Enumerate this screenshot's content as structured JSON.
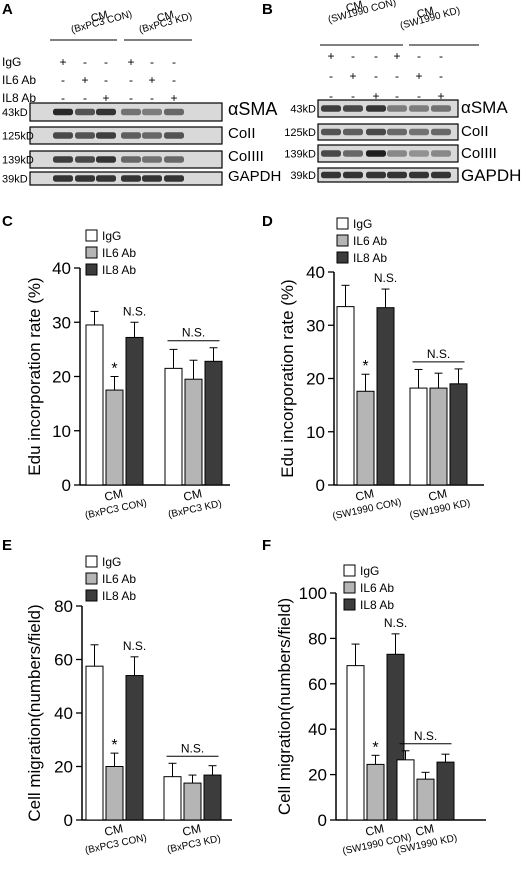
{
  "panels": [
    {
      "letter": "A",
      "cm_labels": [
        [
          "CM",
          "(BxPC3 CON)"
        ],
        [
          "CM",
          "(BxPC3 KD)"
        ]
      ],
      "treatments": [
        {
          "label": "IgG",
          "signs": [
            "+",
            "-",
            "-",
            "+",
            "-",
            "-"
          ]
        },
        {
          "label": "IL6 Ab",
          "signs": [
            "-",
            "+",
            "-",
            "-",
            "+",
            "-"
          ]
        },
        {
          "label": "IL8 Ab",
          "signs": [
            "-",
            "-",
            "+",
            "-",
            "-",
            "+"
          ]
        }
      ],
      "blots": [
        {
          "kd": "43kD",
          "protein": "αSMA",
          "intensity": [
            0.9,
            0.7,
            0.85,
            0.55,
            0.5,
            0.6
          ]
        },
        {
          "kd": "125kD",
          "protein": "CoII",
          "intensity": [
            0.75,
            0.7,
            0.8,
            0.65,
            0.6,
            0.7
          ]
        },
        {
          "kd": "139kD",
          "protein": "CoIIII",
          "intensity": [
            0.8,
            0.75,
            0.85,
            0.6,
            0.55,
            0.6
          ]
        },
        {
          "kd": "39kD",
          "protein": "GAPDH",
          "intensity": [
            0.85,
            0.85,
            0.85,
            0.85,
            0.85,
            0.85
          ]
        }
      ]
    },
    {
      "letter": "B",
      "cm_labels": [
        [
          "CM",
          "(SW1990 CON)"
        ],
        [
          "CM",
          "(SW1990 KD)"
        ]
      ],
      "treatments": [
        {
          "label": "",
          "signs": [
            "+",
            "-",
            "-",
            "+",
            "-",
            "-"
          ]
        },
        {
          "label": "",
          "signs": [
            "-",
            "+",
            "-",
            "-",
            "+",
            "-"
          ]
        },
        {
          "label": "",
          "signs": [
            "-",
            "-",
            "+",
            "-",
            "-",
            "+"
          ]
        }
      ],
      "blots": [
        {
          "kd": "43kD",
          "protein": "αSMA",
          "intensity": [
            0.8,
            0.75,
            0.85,
            0.5,
            0.5,
            0.55
          ]
        },
        {
          "kd": "125kD",
          "protein": "CoII",
          "intensity": [
            0.7,
            0.65,
            0.75,
            0.6,
            0.55,
            0.6
          ]
        },
        {
          "kd": "139kD",
          "protein": "CoIIII",
          "intensity": [
            0.75,
            0.6,
            0.95,
            0.45,
            0.4,
            0.45
          ]
        },
        {
          "kd": "39kD",
          "protein": "GAPDH",
          "intensity": [
            0.85,
            0.85,
            0.85,
            0.85,
            0.85,
            0.85
          ]
        }
      ]
    }
  ],
  "chart_data": [
    {
      "letter": "C",
      "type": "bar",
      "ylabel": "Edu incorporation rate (%)",
      "ylim": [
        0,
        40
      ],
      "yticks": [
        0,
        10,
        20,
        30,
        40
      ],
      "groups": [
        [
          "CM",
          "(BxPC3 CON)"
        ],
        [
          "CM",
          "(BxPC3 KD)"
        ]
      ],
      "series": [
        {
          "name": "IgG",
          "color": "#ffffff",
          "values": [
            29.5,
            21.5
          ],
          "errors": [
            2.5,
            3.5
          ]
        },
        {
          "name": "IL6 Ab",
          "color": "#b5b5b5",
          "values": [
            17.5,
            19.5
          ],
          "errors": [
            2.5,
            3.5
          ]
        },
        {
          "name": "IL8 Ab",
          "color": "#3c3c3c",
          "values": [
            27.2,
            22.8
          ],
          "errors": [
            2.8,
            2.5
          ]
        }
      ],
      "annotations": {
        "star": "*",
        "ns_top": "N.S.",
        "ns_group": "N.S."
      }
    },
    {
      "letter": "D",
      "type": "bar",
      "ylabel": "Edu incorporation rate (%)",
      "ylim": [
        0,
        40
      ],
      "yticks": [
        0,
        10,
        20,
        30,
        40
      ],
      "groups": [
        [
          "CM",
          "(SW1990 CON)"
        ],
        [
          "CM",
          "(SW1990 KD)"
        ]
      ],
      "series": [
        {
          "name": "IgG",
          "color": "#ffffff",
          "values": [
            33.5,
            18.2
          ],
          "errors": [
            4.0,
            3.5
          ]
        },
        {
          "name": "IL6 Ab",
          "color": "#b5b5b5",
          "values": [
            17.6,
            18.2
          ],
          "errors": [
            3.2,
            2.8
          ]
        },
        {
          "name": "IL8 Ab",
          "color": "#3c3c3c",
          "values": [
            33.3,
            19.0
          ],
          "errors": [
            3.5,
            2.8
          ]
        }
      ],
      "annotations": {
        "star": "*",
        "ns_top": "N.S.",
        "ns_group": "N.S."
      }
    },
    {
      "letter": "E",
      "type": "bar",
      "ylabel": "Cell migration(numbers/field)",
      "ylim": [
        0,
        80
      ],
      "yticks": [
        0,
        20,
        40,
        60,
        80
      ],
      "groups": [
        [
          "CM",
          "(BxPC3 CON)"
        ],
        [
          "CM",
          "(BxPC3 KD)"
        ]
      ],
      "series": [
        {
          "name": "IgG",
          "color": "#ffffff",
          "values": [
            57.5,
            16.2
          ],
          "errors": [
            8.0,
            5.0
          ]
        },
        {
          "name": "IL6 Ab",
          "color": "#b5b5b5",
          "values": [
            20.0,
            13.8
          ],
          "errors": [
            5.0,
            3.0
          ]
        },
        {
          "name": "IL8 Ab",
          "color": "#3c3c3c",
          "values": [
            54.0,
            16.8
          ],
          "errors": [
            7.0,
            3.5
          ]
        }
      ],
      "annotations": {
        "star": "*",
        "ns_top": "N.S.",
        "ns_group": "N.S."
      }
    },
    {
      "letter": "F",
      "type": "bar",
      "ylabel": "Cell migration(numbers/field)",
      "ylim": [
        0,
        100
      ],
      "yticks": [
        0,
        20,
        40,
        60,
        80,
        100
      ],
      "groups": [
        [
          "CM",
          "(SW1990 CON)"
        ],
        [
          "CM",
          "(SW1990 KD)"
        ]
      ],
      "series": [
        {
          "name": "IgG",
          "color": "#ffffff",
          "values": [
            68.0,
            26.5
          ],
          "errors": [
            9.5,
            4.0
          ]
        },
        {
          "name": "IL6 Ab",
          "color": "#b5b5b5",
          "values": [
            24.5,
            18.0
          ],
          "errors": [
            4.0,
            3.0
          ]
        },
        {
          "name": "IL8 Ab",
          "color": "#3c3c3c",
          "values": [
            73.0,
            25.5
          ],
          "errors": [
            9.0,
            3.5
          ]
        }
      ],
      "annotations": {
        "star": "*",
        "ns_top": "N.S.",
        "ns_group": "N.S."
      }
    }
  ]
}
